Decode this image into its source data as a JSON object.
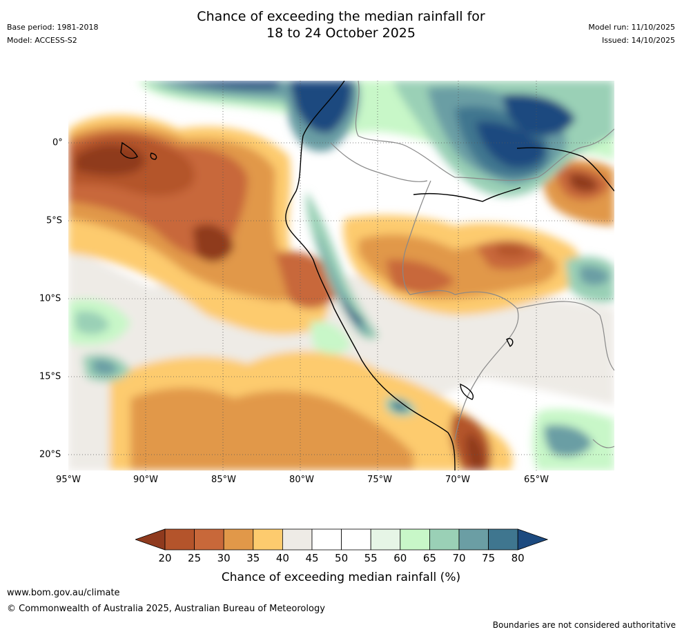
{
  "title_line1": "Chance of exceeding the median rainfall for",
  "title_line2": "18 to 24 October 2025",
  "base_period": "Base period: 1981-2018",
  "model": "Model: ACCESS-S2",
  "model_run": "Model run: 11/10/2025",
  "issued": "Issued: 14/10/2025",
  "x_ticks": [
    "95°W",
    "90°W",
    "85°W",
    "80°W",
    "75°W",
    "70°W",
    "65°W"
  ],
  "y_ticks": [
    "0°",
    "5°S",
    "10°S",
    "15°S",
    "20°S"
  ],
  "colorbar": {
    "ticks": [
      "20",
      "25",
      "30",
      "35",
      "40",
      "45",
      "50",
      "55",
      "60",
      "65",
      "70",
      "75",
      "80"
    ],
    "label": "Chance of exceeding median rainfall (%)",
    "colors": [
      "#8f3a1e",
      "#b4542b",
      "#c8683a",
      "#e19849",
      "#fdcb6e",
      "#eeebe6",
      "#ffffff",
      "#ffffff",
      "#e6f5e6",
      "#c8f7c8",
      "#9ad0b6",
      "#6b9ea4",
      "#3f768f",
      "#1c4a7f"
    ]
  },
  "footer_url": "www.bom.gov.au/climate",
  "footer_copyright": "© Commonwealth of Australia 2025, Australian Bureau of Meteorology",
  "disclaimer": "Boundaries are not considered authoritative"
}
